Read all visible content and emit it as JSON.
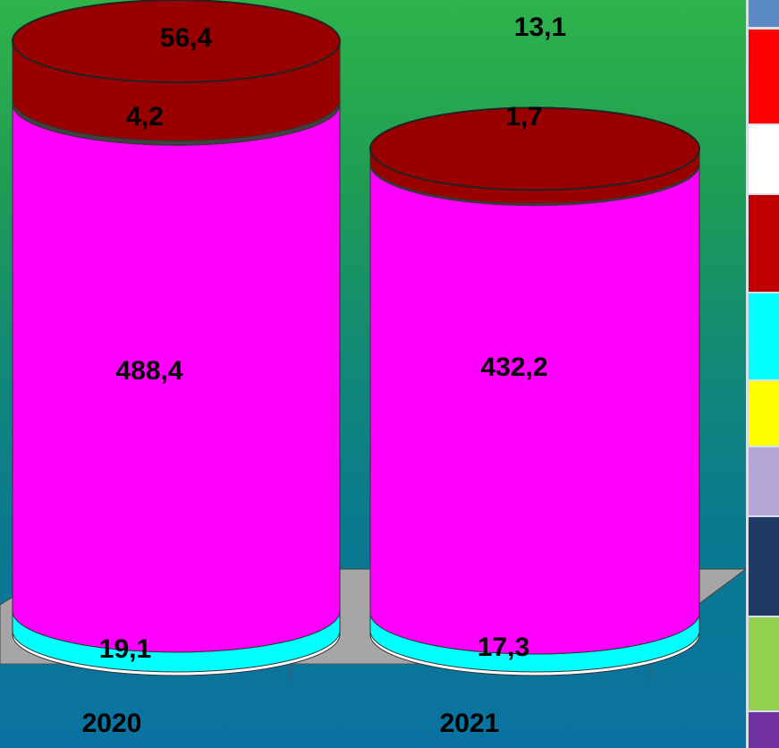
{
  "colors": {
    "magenta": "#ff00ff",
    "cap_dark_red": "#990000",
    "cyan": "#00ffff",
    "floor_gray": "#a6a6a6"
  },
  "legend_swatches": [
    "#5b8ac6",
    "#ff0000",
    "#ffffff",
    "#c00000",
    "#00ffff",
    "#ffff00",
    "#b4a7d6",
    "#1f3b63",
    "#92d050",
    "#7030a0"
  ],
  "chart_data": {
    "type": "bar",
    "title": "",
    "xlabel": "",
    "ylabel": "",
    "categories": [
      "2020",
      "2021"
    ],
    "series": [
      {
        "values": [
          19.1,
          17.3
        ],
        "labels": [
          "19,1",
          "17,3"
        ],
        "color": "#00ffff"
      },
      {
        "values": [
          488.4,
          432.2
        ],
        "labels": [
          "488,4",
          "432,2"
        ],
        "color": "#ff00ff"
      },
      {
        "values": [
          4.2,
          1.7
        ],
        "labels": [
          "4,2",
          "1,7"
        ],
        "color": "#404040"
      },
      {
        "values": [
          56.4,
          13.1
        ],
        "labels": [
          "56,4",
          "13,1"
        ],
        "color": "#990000"
      }
    ]
  }
}
